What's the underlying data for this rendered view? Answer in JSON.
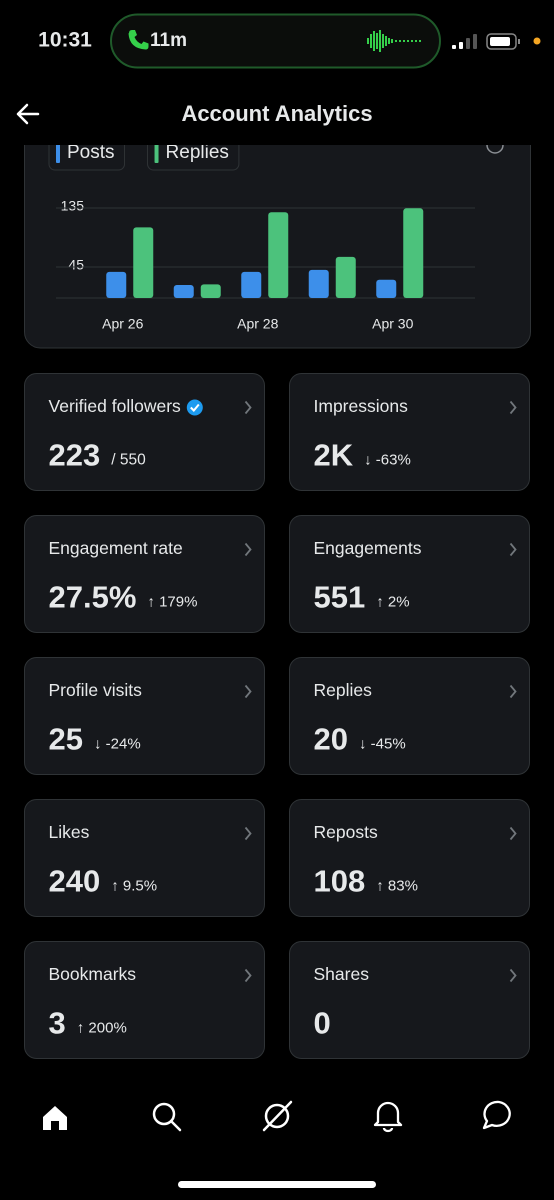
{
  "status_bar": {
    "time": "10:31",
    "call_duration": "11m"
  },
  "header": {
    "title": "Account Analytics"
  },
  "chart_data": {
    "type": "bar",
    "categories": [
      "Apr 26",
      null,
      "Apr 28",
      null,
      "Apr 30"
    ],
    "series": [
      {
        "name": "Posts",
        "color": "#3d8fea",
        "values": [
          36,
          16,
          36,
          39,
          24
        ]
      },
      {
        "name": "Replies",
        "color": "#4cc27c",
        "values": [
          104,
          17,
          127,
          59,
          133
        ]
      }
    ],
    "ylim": [
      0,
      135
    ],
    "yticks": [
      45,
      135
    ],
    "grid": true
  },
  "metrics": [
    {
      "label": "Verified followers",
      "value": "223",
      "total": "/ 550"
    },
    {
      "label": "Impressions",
      "value": "2K",
      "change": "↓ -63%",
      "change_color": "#e5484d"
    },
    {
      "label": "Engagement rate",
      "value": "27.5%",
      "change": "↑ 179%",
      "change_color": "#4cc27c"
    },
    {
      "label": "Engagements",
      "value": "551",
      "change": "↑ 2%",
      "change_color": "#4cc27c"
    },
    {
      "label": "Profile visits",
      "value": "25",
      "change": "↓ -24%",
      "change_color": "#e5484d"
    },
    {
      "label": "Replies",
      "value": "20",
      "change": "↓ -45%",
      "change_color": "#e5484d"
    },
    {
      "label": "Likes",
      "value": "240",
      "change": "↑ 9.5%",
      "change_color": "#4cc27c"
    },
    {
      "label": "Reposts",
      "value": "108",
      "change": "↑ 83%",
      "change_color": "#4cc27c"
    },
    {
      "label": "Bookmarks",
      "value": "3",
      "change": "↑ 200%",
      "change_color": "#4cc27c"
    },
    {
      "label": "Shares",
      "value": "0"
    }
  ]
}
